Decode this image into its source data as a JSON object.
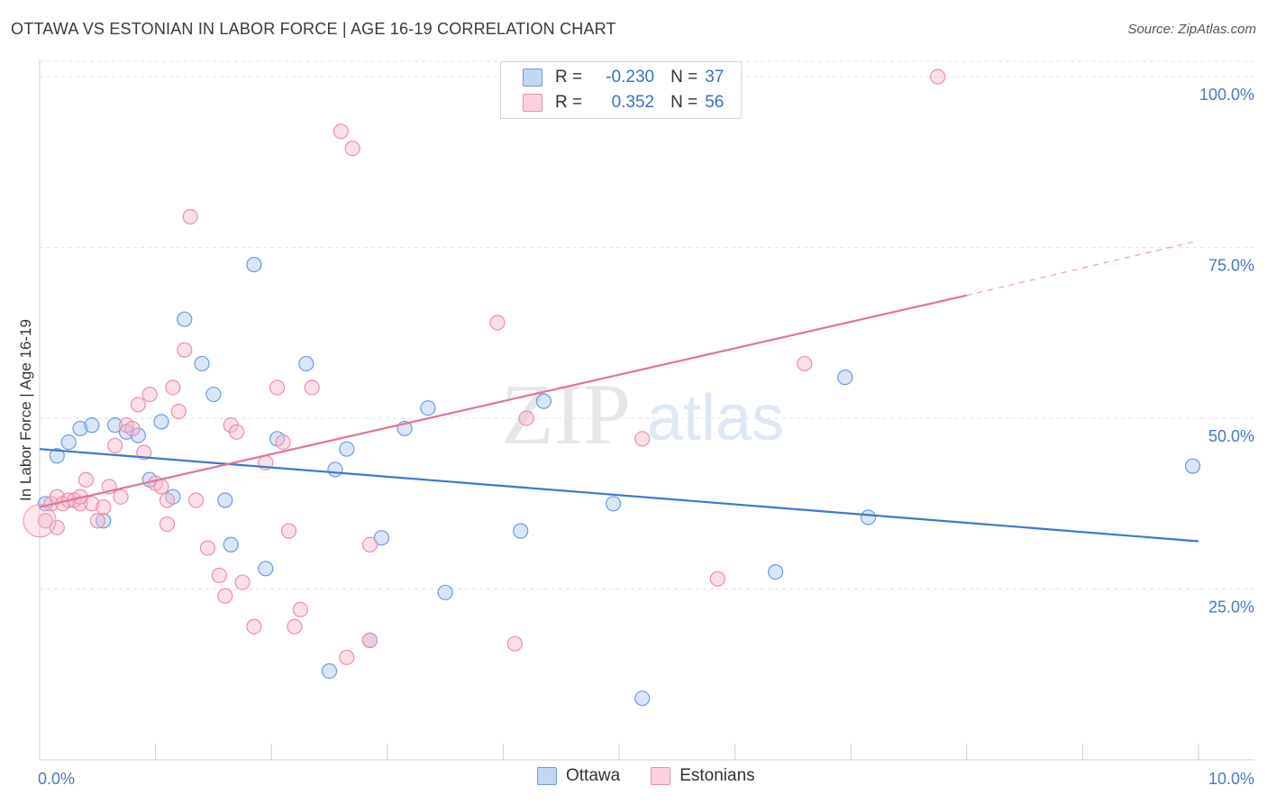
{
  "title": "OTTAWA VS ESTONIAN IN LABOR FORCE | AGE 16-19 CORRELATION CHART",
  "source": "Source: ZipAtlas.com",
  "watermark": {
    "zip": "ZIP",
    "atlas": "atlas"
  },
  "colors": {
    "blue_fill": "#aac7f0",
    "blue_stroke": "#6b9be0",
    "blue_line": "#3a78d0",
    "pink_fill": "#f6b9cc",
    "pink_stroke": "#ea8fae",
    "pink_line": "#e2739a"
  },
  "legend": {
    "rows": [
      {
        "r_label": "R =",
        "r_value": "-0.230",
        "n_label": "N =",
        "n_value": "37"
      },
      {
        "r_label": "R =",
        "r_value": "0.352",
        "n_label": "N =",
        "n_value": "56"
      }
    ]
  },
  "bottom_legend": {
    "ottawa": "Ottawa",
    "estonians": "Estonians"
  },
  "chart_data": {
    "type": "scatter",
    "title": "OTTAWA VS ESTONIAN IN LABOR FORCE | AGE 16-19 CORRELATION CHART",
    "xlabel": "",
    "ylabel": "In Labor Force | Age 16-19",
    "xlim": [
      0,
      10
    ],
    "ylim": [
      0,
      102
    ],
    "x_tick_labels": {
      "left": "0.0%",
      "right": "10.0%"
    },
    "y_ticks": [
      25,
      50,
      75,
      100
    ],
    "y_tick_labels": [
      "25.0%",
      "50.0%",
      "75.0%",
      "100.0%"
    ],
    "grid": true,
    "series": [
      {
        "name": "Ottawa",
        "color": "#6b9be0",
        "points": [
          [
            0.05,
            37.5
          ],
          [
            0.15,
            44.5
          ],
          [
            0.25,
            46.5
          ],
          [
            0.35,
            48.5
          ],
          [
            0.45,
            49.0
          ],
          [
            0.55,
            35.0
          ],
          [
            0.65,
            49.0
          ],
          [
            0.75,
            48.0
          ],
          [
            0.85,
            47.5
          ],
          [
            0.95,
            41.0
          ],
          [
            1.05,
            49.5
          ],
          [
            1.15,
            38.5
          ],
          [
            1.25,
            64.5
          ],
          [
            1.4,
            58.0
          ],
          [
            1.5,
            53.5
          ],
          [
            1.6,
            38.0
          ],
          [
            1.65,
            31.5
          ],
          [
            1.85,
            72.5
          ],
          [
            1.95,
            28.0
          ],
          [
            2.05,
            47.0
          ],
          [
            2.3,
            58.0
          ],
          [
            2.5,
            13.0
          ],
          [
            2.55,
            42.5
          ],
          [
            2.65,
            45.5
          ],
          [
            2.85,
            17.5
          ],
          [
            2.95,
            32.5
          ],
          [
            3.15,
            48.5
          ],
          [
            3.35,
            51.5
          ],
          [
            3.5,
            24.5
          ],
          [
            4.15,
            33.5
          ],
          [
            4.35,
            52.5
          ],
          [
            4.95,
            37.5
          ],
          [
            5.2,
            9.0
          ],
          [
            6.35,
            27.5
          ],
          [
            6.95,
            56.0
          ],
          [
            7.15,
            35.5
          ],
          [
            9.95,
            43.0
          ]
        ],
        "trend": {
          "x0": 0,
          "y0": 45.5,
          "x1": 10,
          "y1": 32.0
        }
      },
      {
        "name": "Estonians",
        "color": "#ea8fae",
        "points": [
          [
            0.05,
            35.0
          ],
          [
            0.1,
            37.5
          ],
          [
            0.15,
            38.5
          ],
          [
            0.2,
            37.5
          ],
          [
            0.25,
            38.0
          ],
          [
            0.3,
            38.0
          ],
          [
            0.35,
            37.5
          ],
          [
            0.4,
            41.0
          ],
          [
            0.45,
            37.5
          ],
          [
            0.5,
            35.0
          ],
          [
            0.55,
            37.0
          ],
          [
            0.6,
            40.0
          ],
          [
            0.65,
            46.0
          ],
          [
            0.7,
            38.5
          ],
          [
            0.75,
            49.0
          ],
          [
            0.8,
            48.5
          ],
          [
            0.85,
            52.0
          ],
          [
            0.9,
            45.0
          ],
          [
            0.95,
            53.5
          ],
          [
            1.0,
            40.5
          ],
          [
            1.05,
            40.0
          ],
          [
            1.1,
            34.5
          ],
          [
            1.15,
            54.5
          ],
          [
            1.2,
            51.0
          ],
          [
            1.25,
            60.0
          ],
          [
            1.3,
            79.5
          ],
          [
            1.35,
            38.0
          ],
          [
            1.45,
            31.0
          ],
          [
            1.55,
            27.0
          ],
          [
            1.6,
            24.0
          ],
          [
            1.65,
            49.0
          ],
          [
            1.7,
            48.0
          ],
          [
            1.75,
            26.0
          ],
          [
            1.85,
            19.5
          ],
          [
            1.95,
            43.5
          ],
          [
            2.05,
            54.5
          ],
          [
            2.1,
            46.5
          ],
          [
            2.15,
            33.5
          ],
          [
            2.2,
            19.5
          ],
          [
            2.25,
            22.0
          ],
          [
            2.35,
            54.5
          ],
          [
            2.6,
            92.0
          ],
          [
            2.65,
            15.0
          ],
          [
            2.7,
            89.5
          ],
          [
            2.85,
            31.5
          ],
          [
            2.85,
            17.5
          ],
          [
            3.95,
            64.0
          ],
          [
            4.1,
            17.0
          ],
          [
            4.2,
            50.0
          ],
          [
            5.2,
            47.0
          ],
          [
            5.85,
            26.5
          ],
          [
            6.6,
            58.0
          ],
          [
            7.75,
            100.0
          ],
          [
            0.15,
            34.0
          ],
          [
            1.1,
            38.0
          ],
          [
            0.35,
            38.5
          ]
        ],
        "trend": {
          "x0": 0,
          "y0": 37.0,
          "x1": 8.0,
          "y1": 68.0,
          "dash_x1": 10,
          "dash_y1": 76.0
        }
      }
    ]
  }
}
